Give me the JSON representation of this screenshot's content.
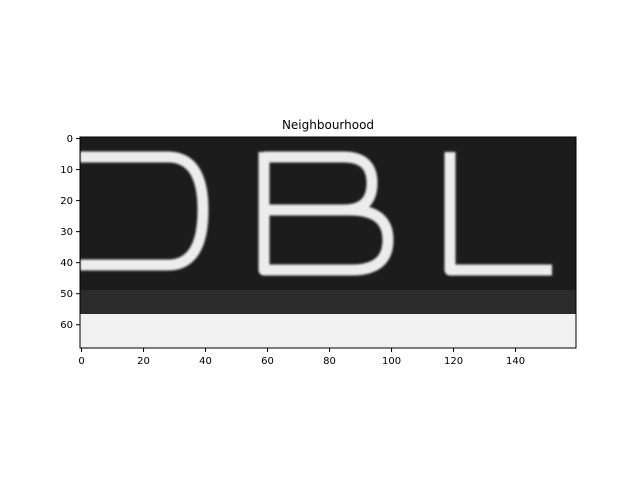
{
  "figure": {
    "title": "Neighbourhood",
    "x_ticks": [
      "0",
      "20",
      "40",
      "60",
      "80",
      "100",
      "120",
      "140"
    ],
    "y_ticks": [
      "0",
      "10",
      "20",
      "30",
      "40",
      "50",
      "60"
    ],
    "x_range": [
      0,
      159
    ],
    "y_range": [
      0,
      67
    ]
  },
  "image": {
    "description_text": "DBL",
    "background_color": "#1c1c1c",
    "letter_color": "#ececec",
    "stripe_color": "#f4f4f4"
  }
}
